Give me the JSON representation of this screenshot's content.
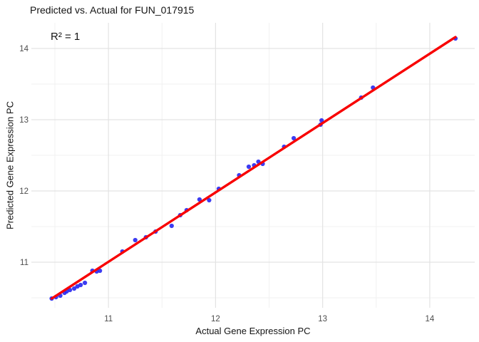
{
  "chart_data": {
    "type": "scatter",
    "title": "Predicted vs. Actual for FUN_017915",
    "annotation": "R² = 1",
    "xlabel": "Actual Gene Expression PC",
    "ylabel": "Predicted Gene Expression PC",
    "xlim": [
      10.28,
      14.42
    ],
    "ylim": [
      10.36,
      14.36
    ],
    "x_ticks": [
      11,
      12,
      13,
      14
    ],
    "y_ticks": [
      11,
      12,
      13,
      14
    ],
    "x_minor_ticks": [
      10.5,
      11.5,
      12.5,
      13.5
    ],
    "y_minor_ticks": [
      10.5,
      11.5,
      12.5,
      13.5
    ],
    "grid": true,
    "legend": "none",
    "points": [
      [
        10.47,
        10.49
      ],
      [
        10.51,
        10.51
      ],
      [
        10.55,
        10.53
      ],
      [
        10.59,
        10.57
      ],
      [
        10.61,
        10.59
      ],
      [
        10.64,
        10.61
      ],
      [
        10.68,
        10.63
      ],
      [
        10.71,
        10.66
      ],
      [
        10.74,
        10.68
      ],
      [
        10.78,
        10.71
      ],
      [
        10.85,
        10.88
      ],
      [
        10.89,
        10.87
      ],
      [
        10.92,
        10.88
      ],
      [
        11.13,
        11.15
      ],
      [
        11.25,
        11.31
      ],
      [
        11.35,
        11.35
      ],
      [
        11.44,
        11.43
      ],
      [
        11.59,
        11.51
      ],
      [
        11.67,
        11.66
      ],
      [
        11.73,
        11.73
      ],
      [
        11.85,
        11.88
      ],
      [
        11.94,
        11.87
      ],
      [
        12.03,
        12.03
      ],
      [
        12.22,
        12.22
      ],
      [
        12.31,
        12.34
      ],
      [
        12.36,
        12.36
      ],
      [
        12.4,
        12.41
      ],
      [
        12.44,
        12.38
      ],
      [
        12.64,
        12.62
      ],
      [
        12.73,
        12.74
      ],
      [
        12.98,
        12.93
      ],
      [
        12.99,
        12.99
      ],
      [
        13.36,
        13.31
      ],
      [
        13.47,
        13.45
      ],
      [
        14.24,
        14.14
      ]
    ],
    "fit_line": {
      "x1": 10.47,
      "y1": 10.49,
      "x2": 14.24,
      "y2": 14.16
    },
    "colors": {
      "point": "#2b2bf0",
      "line": "#f80000",
      "grid_major": "#e3e3e3",
      "grid_minor": "#f1f1f1",
      "tick_label": "#4d4d4d",
      "background": "#ffffff"
    }
  }
}
